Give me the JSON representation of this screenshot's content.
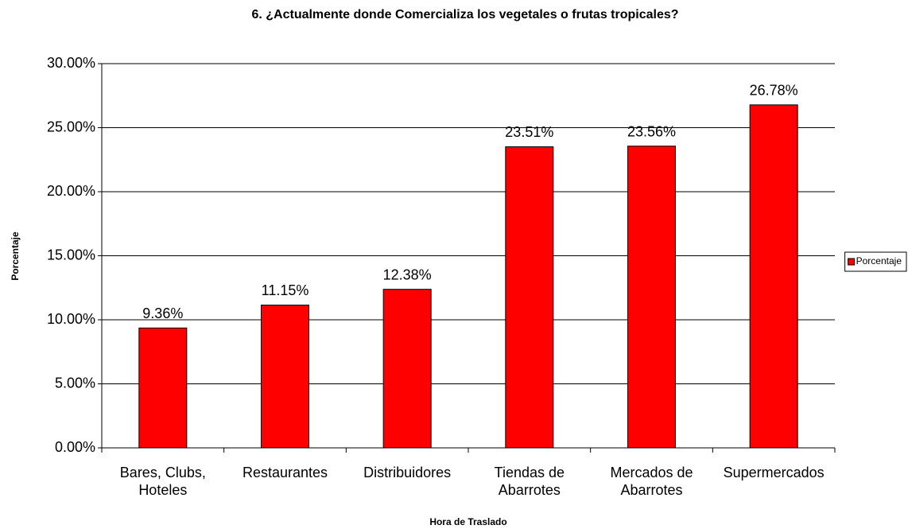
{
  "chart_data": {
    "type": "bar",
    "title": "6. ¿Actualmente donde Comercializa los vegetales o frutas tropicales?",
    "x_label": "Hora de Traslado",
    "y_label": "Porcentaje",
    "categories": [
      "Bares, Clubs, Hoteles",
      "Restaurantes",
      "Distribuidores",
      "Tiendas de Abarrotes",
      "Mercados de Abarrotes",
      "Supermercados"
    ],
    "series": [
      {
        "name": "Porcentaje",
        "color": "#ff0000",
        "values": [
          9.36,
          11.15,
          12.38,
          23.51,
          23.56,
          26.78
        ],
        "value_labels": [
          "9.36%",
          "11.15%",
          "12.38%",
          "23.51%",
          "23.56%",
          "26.78%"
        ]
      }
    ],
    "ylim": [
      0,
      30
    ],
    "yticks": [
      {
        "value": 0,
        "label": "0.00%"
      },
      {
        "value": 5,
        "label": "5.00%"
      },
      {
        "value": 10,
        "label": "10.00%"
      },
      {
        "value": 15,
        "label": "15.00%"
      },
      {
        "value": 20,
        "label": "20.00%"
      },
      {
        "value": 25,
        "label": "25.00%"
      },
      {
        "value": 30,
        "label": "30.00%"
      }
    ],
    "grid": true,
    "legend": "right"
  }
}
